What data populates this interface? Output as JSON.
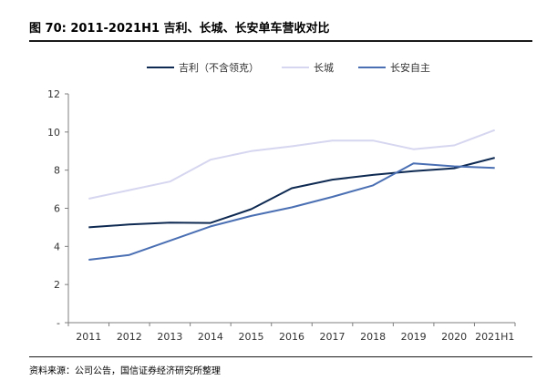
{
  "title": "图 70: 2011-2021H1 吉利、长城、长安单车营收对比",
  "source": "资料来源：公司公告，国信证券经济研究所整理",
  "chart_data": {
    "type": "line",
    "title": "图 70: 2011-2021H1 吉利、长城、长安单车营收对比",
    "xlabel": "",
    "ylabel": "",
    "categories": [
      "2011",
      "2012",
      "2013",
      "2014",
      "2015",
      "2016",
      "2017",
      "2018",
      "2019",
      "2020",
      "2021H1"
    ],
    "ylim": [
      0,
      12
    ],
    "yticks": [
      0,
      2,
      4,
      6,
      8,
      10,
      12
    ],
    "ytick_labels": [
      "-",
      "2",
      "4",
      "6",
      "8",
      "10",
      "12"
    ],
    "grid": false,
    "legend_position": "top-center",
    "series": [
      {
        "name": "吉利（不含领克）",
        "color": "#0f2a52",
        "values": [
          5.0,
          5.15,
          5.25,
          5.23,
          5.95,
          7.05,
          7.5,
          7.75,
          7.95,
          8.1,
          8.65
        ]
      },
      {
        "name": "长城",
        "color": "#d6d6f0",
        "values": [
          6.5,
          6.95,
          7.4,
          8.55,
          9.0,
          9.25,
          9.55,
          9.55,
          9.1,
          9.3,
          10.1
        ]
      },
      {
        "name": "长安自主",
        "color": "#4a6fb3",
        "values": [
          3.3,
          3.55,
          4.3,
          5.05,
          5.6,
          6.05,
          6.6,
          7.2,
          8.35,
          8.2,
          8.12
        ]
      }
    ]
  }
}
